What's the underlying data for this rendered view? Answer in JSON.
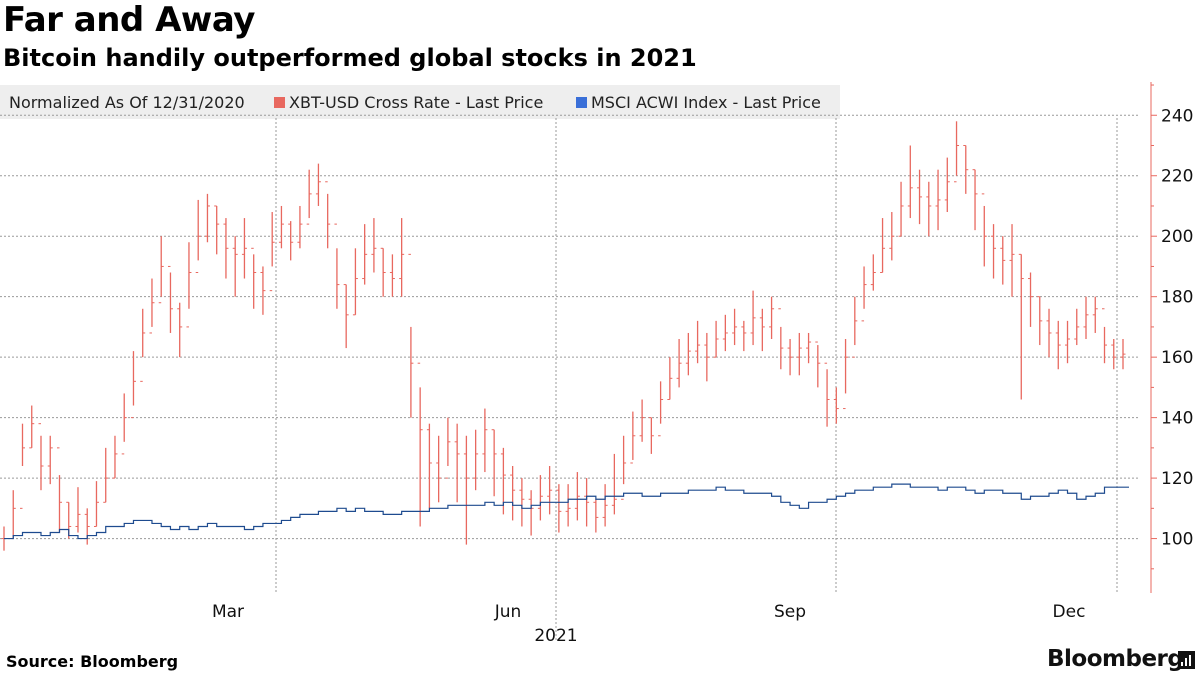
{
  "header": {
    "title": "Far and Away",
    "subtitle": "Bitcoin handily outperformed global stocks in 2021"
  },
  "legend": {
    "note": "Normalized As Of 12/31/2020",
    "items": [
      {
        "label": "XBT-USD Cross Rate - Last Price",
        "color": "#e8685f"
      },
      {
        "label": "MSCI ACWI Index - Last Price",
        "color": "#3a6fd8"
      }
    ]
  },
  "footer": {
    "source": "Source: Bloomberg",
    "brand": "Bloomberg"
  },
  "chart_data": {
    "type": "line",
    "title": "Far and Away",
    "subtitle": "Bitcoin handily outperformed global stocks in 2021",
    "xlabel": "2021",
    "ylabel": "",
    "ylim": [
      82,
      251
    ],
    "yticks": [
      100,
      120,
      140,
      160,
      180,
      200,
      220,
      240
    ],
    "xticks": [
      "Mar",
      "Jun",
      "Sep",
      "Dec"
    ],
    "grid": true,
    "legend_position": "top",
    "x": [
      "2021-01-01",
      "2021-01-04",
      "2021-01-07",
      "2021-01-10",
      "2021-01-13",
      "2021-01-16",
      "2021-01-19",
      "2021-01-22",
      "2021-01-25",
      "2021-01-28",
      "2021-01-31",
      "2021-02-03",
      "2021-02-06",
      "2021-02-09",
      "2021-02-12",
      "2021-02-15",
      "2021-02-18",
      "2021-02-21",
      "2021-02-24",
      "2021-02-27",
      "2021-03-02",
      "2021-03-05",
      "2021-03-08",
      "2021-03-11",
      "2021-03-14",
      "2021-03-17",
      "2021-03-20",
      "2021-03-23",
      "2021-03-26",
      "2021-03-29",
      "2021-04-01",
      "2021-04-04",
      "2021-04-07",
      "2021-04-10",
      "2021-04-13",
      "2021-04-16",
      "2021-04-19",
      "2021-04-22",
      "2021-04-25",
      "2021-04-28",
      "2021-05-01",
      "2021-05-04",
      "2021-05-07",
      "2021-05-10",
      "2021-05-13",
      "2021-05-16",
      "2021-05-19",
      "2021-05-22",
      "2021-05-25",
      "2021-05-28",
      "2021-05-31",
      "2021-06-03",
      "2021-06-06",
      "2021-06-09",
      "2021-06-12",
      "2021-06-15",
      "2021-06-18",
      "2021-06-21",
      "2021-06-24",
      "2021-06-27",
      "2021-06-30",
      "2021-07-03",
      "2021-07-06",
      "2021-07-09",
      "2021-07-12",
      "2021-07-15",
      "2021-07-18",
      "2021-07-21",
      "2021-07-24",
      "2021-07-27",
      "2021-07-30",
      "2021-08-02",
      "2021-08-05",
      "2021-08-08",
      "2021-08-11",
      "2021-08-14",
      "2021-08-17",
      "2021-08-20",
      "2021-08-23",
      "2021-08-26",
      "2021-08-29",
      "2021-09-01",
      "2021-09-04",
      "2021-09-07",
      "2021-09-10",
      "2021-09-13",
      "2021-09-16",
      "2021-09-19",
      "2021-09-22",
      "2021-09-25",
      "2021-09-28",
      "2021-10-01",
      "2021-10-04",
      "2021-10-07",
      "2021-10-10",
      "2021-10-13",
      "2021-10-16",
      "2021-10-19",
      "2021-10-22",
      "2021-10-25",
      "2021-10-28",
      "2021-10-31",
      "2021-11-03",
      "2021-11-06",
      "2021-11-09",
      "2021-11-12",
      "2021-11-15",
      "2021-11-18",
      "2021-11-21",
      "2021-11-24",
      "2021-11-27",
      "2021-11-30",
      "2021-12-03",
      "2021-12-06",
      "2021-12-09",
      "2021-12-12",
      "2021-12-15",
      "2021-12-18",
      "2021-12-21",
      "2021-12-24",
      "2021-12-27",
      "2021-12-30"
    ],
    "series": [
      {
        "name": "XBT-USD Cross Rate - Last Price",
        "color": "#e8685f",
        "style": "high-low-close bars",
        "values": [
          100,
          110,
          130,
          138,
          124,
          130,
          112,
          104,
          108,
          104,
          112,
          120,
          128,
          140,
          152,
          168,
          178,
          190,
          176,
          170,
          188,
          200,
          210,
          204,
          196,
          194,
          196,
          188,
          182,
          198,
          204,
          198,
          204,
          214,
          218,
          204,
          184,
          174,
          186,
          194,
          196,
          188,
          186,
          194,
          158,
          136,
          125,
          120,
          132,
          128,
          120,
          128,
          136,
          128,
          121,
          116,
          113,
          110,
          114,
          116,
          109,
          110,
          114,
          112,
          107,
          111,
          113,
          125,
          134,
          140,
          134,
          146,
          153,
          158,
          162,
          164,
          160,
          166,
          168,
          170,
          168,
          173,
          170,
          176,
          163,
          160,
          163,
          165,
          158,
          146,
          143,
          160,
          172,
          184,
          188,
          196,
          200,
          210,
          216,
          213,
          210,
          212,
          218,
          230,
          222,
          214,
          200,
          196,
          192,
          194,
          186,
          180,
          172,
          168,
          164,
          166,
          170,
          174,
          176,
          164,
          160,
          161
        ],
        "highs": [
          104,
          116,
          138,
          144,
          134,
          134,
          121,
          112,
          117,
          110,
          119,
          130,
          134,
          148,
          162,
          176,
          186,
          200,
          188,
          178,
          198,
          212,
          214,
          210,
          206,
          200,
          206,
          194,
          190,
          208,
          210,
          205,
          210,
          222,
          224,
          214,
          196,
          184,
          196,
          204,
          206,
          196,
          194,
          206,
          170,
          150,
          138,
          134,
          140,
          138,
          134,
          136,
          143,
          136,
          130,
          124,
          120,
          116,
          121,
          124,
          118,
          118,
          122,
          120,
          113,
          118,
          128,
          134,
          142,
          146,
          140,
          152,
          160,
          166,
          168,
          172,
          168,
          172,
          174,
          176,
          172,
          182,
          176,
          180,
          170,
          166,
          168,
          168,
          164,
          156,
          150,
          166,
          180,
          190,
          194,
          206,
          208,
          218,
          230,
          222,
          218,
          222,
          226,
          238,
          230,
          222,
          210,
          204,
          200,
          204,
          194,
          188,
          180,
          176,
          172,
          172,
          176,
          180,
          180,
          170,
          166,
          166
        ],
        "lows": [
          96,
          100,
          124,
          130,
          116,
          118,
          102,
          100,
          102,
          98,
          104,
          112,
          120,
          132,
          144,
          160,
          170,
          180,
          168,
          160,
          176,
          192,
          198,
          194,
          186,
          180,
          186,
          176,
          174,
          190,
          196,
          192,
          196,
          206,
          210,
          196,
          176,
          163,
          174,
          184,
          188,
          180,
          180,
          180,
          140,
          104,
          110,
          112,
          124,
          112,
          98,
          116,
          122,
          114,
          108,
          106,
          104,
          101,
          106,
          108,
          102,
          104,
          106,
          104,
          102,
          104,
          108,
          118,
          126,
          132,
          128,
          138,
          146,
          150,
          154,
          158,
          152,
          160,
          162,
          164,
          162,
          164,
          162,
          166,
          156,
          154,
          154,
          158,
          150,
          137,
          138,
          148,
          164,
          176,
          182,
          188,
          192,
          200,
          206,
          204,
          200,
          202,
          208,
          220,
          214,
          202,
          190,
          186,
          184,
          180,
          146,
          170,
          164,
          160,
          156,
          158,
          164,
          166,
          168,
          158,
          156,
          156
        ]
      },
      {
        "name": "MSCI ACWI Index - Last Price",
        "color": "#1e4b8f",
        "style": "step line",
        "values": [
          100,
          101,
          102,
          102,
          101,
          102,
          103,
          101,
          100,
          101,
          102,
          104,
          104,
          105,
          106,
          106,
          105,
          104,
          103,
          104,
          103,
          104,
          105,
          104,
          104,
          104,
          103,
          104,
          105,
          105,
          106,
          107,
          108,
          108,
          109,
          109,
          110,
          109,
          110,
          109,
          109,
          108,
          108,
          109,
          109,
          109,
          110,
          110,
          111,
          111,
          111,
          111,
          112,
          111,
          112,
          111,
          110,
          111,
          112,
          112,
          112,
          113,
          113,
          114,
          113,
          114,
          114,
          115,
          115,
          114,
          114,
          115,
          115,
          115,
          116,
          116,
          116,
          117,
          116,
          116,
          115,
          115,
          115,
          114,
          112,
          111,
          110,
          112,
          112,
          113,
          114,
          115,
          116,
          116,
          117,
          117,
          118,
          118,
          117,
          117,
          117,
          116,
          117,
          117,
          116,
          115,
          116,
          116,
          115,
          115,
          113,
          114,
          114,
          115,
          116,
          115,
          113,
          114,
          115,
          117,
          117,
          117
        ]
      }
    ]
  }
}
